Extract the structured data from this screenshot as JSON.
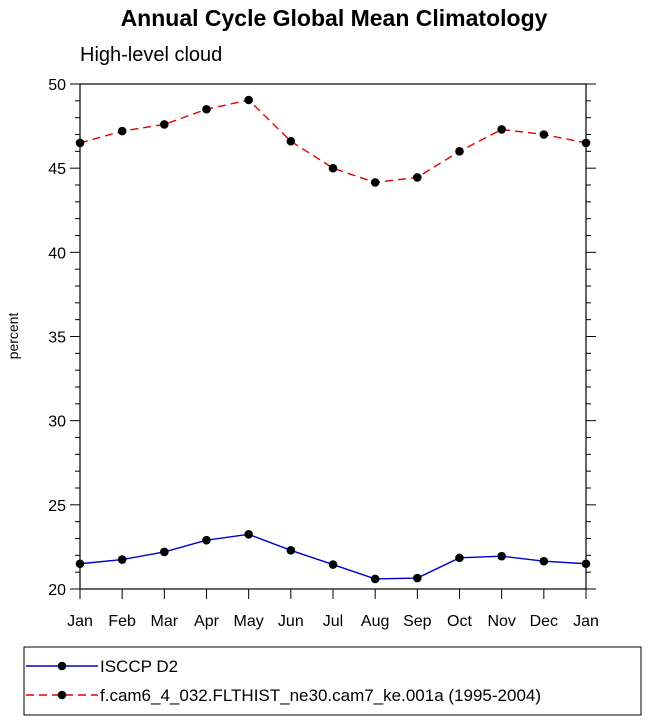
{
  "chart_data": {
    "type": "line",
    "title": "Annual Cycle Global Mean Climatology",
    "subtitle": "High-level cloud",
    "xlabel": "",
    "ylabel": "percent",
    "categories": [
      "Jan",
      "Feb",
      "Mar",
      "Apr",
      "May",
      "Jun",
      "Jul",
      "Aug",
      "Sep",
      "Oct",
      "Nov",
      "Dec",
      "Jan"
    ],
    "ylim": [
      20,
      50
    ],
    "yticks": [
      20,
      25,
      30,
      35,
      40,
      45,
      50
    ],
    "series": [
      {
        "name": "ISCCP D2",
        "color": "#0000cc",
        "dash": "solid",
        "values": [
          21.5,
          21.75,
          22.2,
          22.9,
          23.25,
          22.3,
          21.45,
          20.6,
          20.65,
          21.85,
          21.95,
          21.65,
          21.5
        ]
      },
      {
        "name": "f.cam6_4_032.FLTHIST_ne30.cam7_ke.001a (1995-2004)",
        "color": "#e00000",
        "dash": "dashed",
        "values": [
          46.5,
          47.2,
          47.6,
          48.5,
          49.05,
          46.6,
          45.0,
          44.15,
          44.45,
          46.0,
          47.3,
          47.0,
          46.5
        ]
      }
    ],
    "legend_position": "bottom",
    "grid": false
  }
}
